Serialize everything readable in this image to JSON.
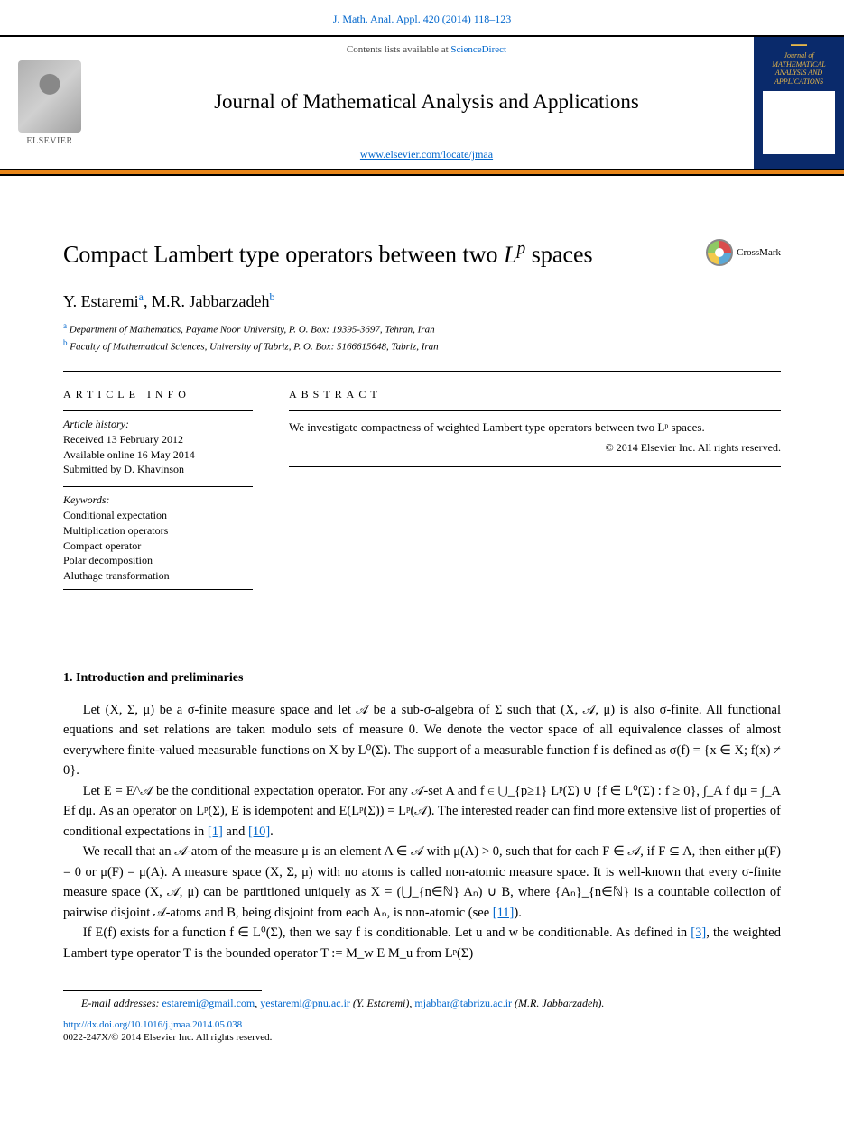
{
  "citation": "J. Math. Anal. Appl. 420 (2014) 118–123",
  "masthead": {
    "contents_prefix": "Contents lists available at ",
    "contents_link": "ScienceDirect",
    "journal_title": "Journal of Mathematical Analysis and Applications",
    "journal_url": "www.elsevier.com/locate/jmaa",
    "publisher": "ELSEVIER",
    "thumb_title": "Journal of MATHEMATICAL ANALYSIS AND APPLICATIONS"
  },
  "paper": {
    "title_pre": "Compact Lambert type operators between two ",
    "title_math": "Lᵖ",
    "title_post": " spaces",
    "crossmark_label": "CrossMark",
    "authors": [
      {
        "name": "Y. Estaremi",
        "sup": "a"
      },
      {
        "name": "M.R. Jabbarzadeh",
        "sup": "b"
      }
    ],
    "affiliations": [
      {
        "sup": "a",
        "text": "Department of Mathematics, Payame Noor University, P. O. Box: 19395-3697, Tehran, Iran"
      },
      {
        "sup": "b",
        "text": "Faculty of Mathematical Sciences, University of Tabriz, P. O. Box: 5166615648, Tabriz, Iran"
      }
    ]
  },
  "info": {
    "label": "article info",
    "history_label": "Article history:",
    "received": "Received 13 February 2012",
    "online": "Available online 16 May 2014",
    "submitted": "Submitted by D. Khavinson",
    "keywords_label": "Keywords:",
    "keywords": [
      "Conditional expectation",
      "Multiplication operators",
      "Compact operator",
      "Polar decomposition",
      "Aluthage transformation"
    ]
  },
  "abstract": {
    "label": "abstract",
    "text": "We investigate compactness of weighted Lambert type operators between two Lᵖ spaces.",
    "copyright": "© 2014 Elsevier Inc. All rights reserved."
  },
  "section1": {
    "heading": "1. Introduction and preliminaries",
    "p1": "Let (X, Σ, μ) be a σ-finite measure space and let 𝒜 be a sub-σ-algebra of Σ such that (X, 𝒜, μ) is also σ-finite. All functional equations and set relations are taken modulo sets of measure 0. We denote the vector space of all equivalence classes of almost everywhere finite-valued measurable functions on X by L⁰(Σ). The support of a measurable function f is defined as σ(f) = {x ∈ X; f(x) ≠ 0}.",
    "p2_a": "Let E = E^𝒜 be the conditional expectation operator. For any 𝒜-set A and f ∈ ⋃_{p≥1} Lᵖ(Σ) ∪ {f ∈ L⁰(Σ) : f ≥ 0}, ∫_A f dμ = ∫_A Ef dμ. As an operator on Lᵖ(Σ), E is idempotent and E(Lᵖ(Σ)) = Lᵖ(𝒜). The interested reader can find more extensive list of properties of conditional expectations in ",
    "p2_ref1": "[1]",
    "p2_mid": " and ",
    "p2_ref2": "[10]",
    "p2_end": ".",
    "p3_a": "We recall that an 𝒜-atom of the measure μ is an element A ∈ 𝒜 with μ(A) > 0, such that for each F ∈ 𝒜, if F ⊆ A, then either μ(F) = 0 or μ(F) = μ(A). A measure space (X, Σ, μ) with no atoms is called non-atomic measure space. It is well-known that every σ-finite measure space (X, 𝒜, μ) can be partitioned uniquely as X = (⋃_{n∈ℕ} Aₙ) ∪ B, where {Aₙ}_{n∈ℕ} is a countable collection of pairwise disjoint 𝒜-atoms and B, being disjoint from each Aₙ, is non-atomic (see ",
    "p3_ref": "[11]",
    "p3_end": ").",
    "p4_a": "If E(f) exists for a function f ∈ L⁰(Σ), then we say f is conditionable. Let u and w be conditionable. As defined in ",
    "p4_ref": "[3]",
    "p4_end": ", the weighted Lambert type operator T is the bounded operator T := M_w E M_u from Lᵖ(Σ)"
  },
  "footer": {
    "email_label": "E-mail addresses: ",
    "emails": [
      {
        "addr": "estaremi@gmail.com",
        "who": ""
      },
      {
        "addr": "yestaremi@pnu.ac.ir",
        "who": " (Y. Estaremi), "
      },
      {
        "addr": "mjabbar@tabrizu.ac.ir",
        "who": " (M.R. Jabbarzadeh)."
      }
    ],
    "doi": "http://dx.doi.org/10.1016/j.jmaa.2014.05.038",
    "copyright": "0022-247X/© 2014 Elsevier Inc. All rights reserved."
  },
  "colors": {
    "link": "#0066cc",
    "orange_bar": "#e8861a",
    "thumb_bg": "#0a2a6b",
    "thumb_text": "#e8b84a"
  }
}
